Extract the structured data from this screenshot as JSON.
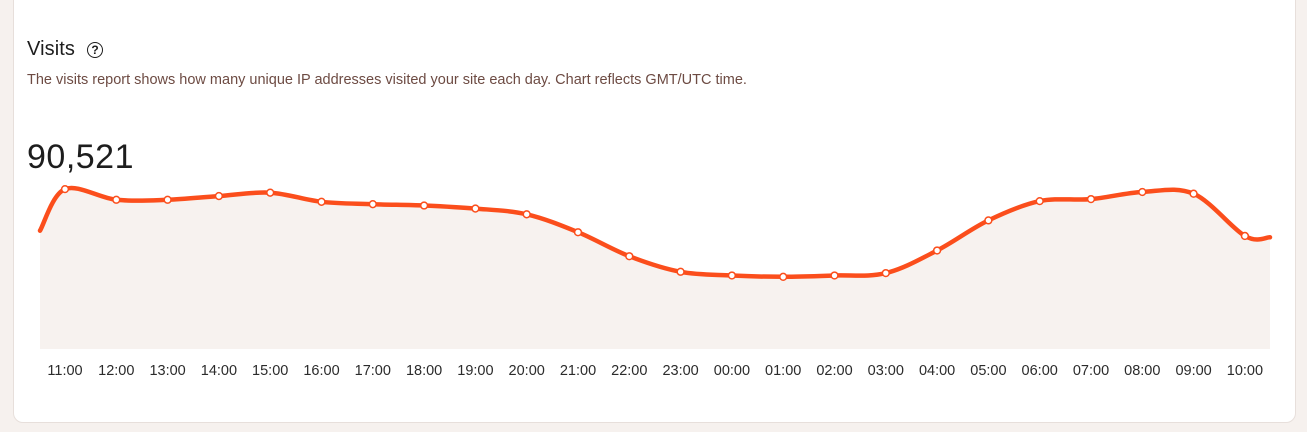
{
  "header": {
    "title": "Visits",
    "help_icon": "question-circle-icon",
    "description": "The visits report shows how many unique IP addresses visited your site each day. Chart reflects GMT/UTC time.",
    "total": "90,521"
  },
  "colors": {
    "line": "#fb4e1c",
    "area": "#f7f2ef",
    "card_bg": "#ffffff",
    "page_bg": "#f6f1ee"
  },
  "chart_data": {
    "type": "area",
    "x": [
      "11:00",
      "12:00",
      "13:00",
      "14:00",
      "15:00",
      "16:00",
      "17:00",
      "18:00",
      "19:00",
      "20:00",
      "21:00",
      "22:00",
      "23:00",
      "00:00",
      "01:00",
      "02:00",
      "03:00",
      "04:00",
      "05:00",
      "06:00",
      "07:00",
      "08:00",
      "09:00",
      "10:00"
    ],
    "values": [
      4730,
      4415,
      4415,
      4525,
      4625,
      4355,
      4285,
      4245,
      4155,
      3985,
      3455,
      2745,
      2285,
      2175,
      2135,
      2175,
      2245,
      2915,
      3805,
      4375,
      4435,
      4645,
      4595,
      3345
    ],
    "ylim": [
      0,
      5000
    ],
    "grid": false,
    "legend": "none"
  }
}
